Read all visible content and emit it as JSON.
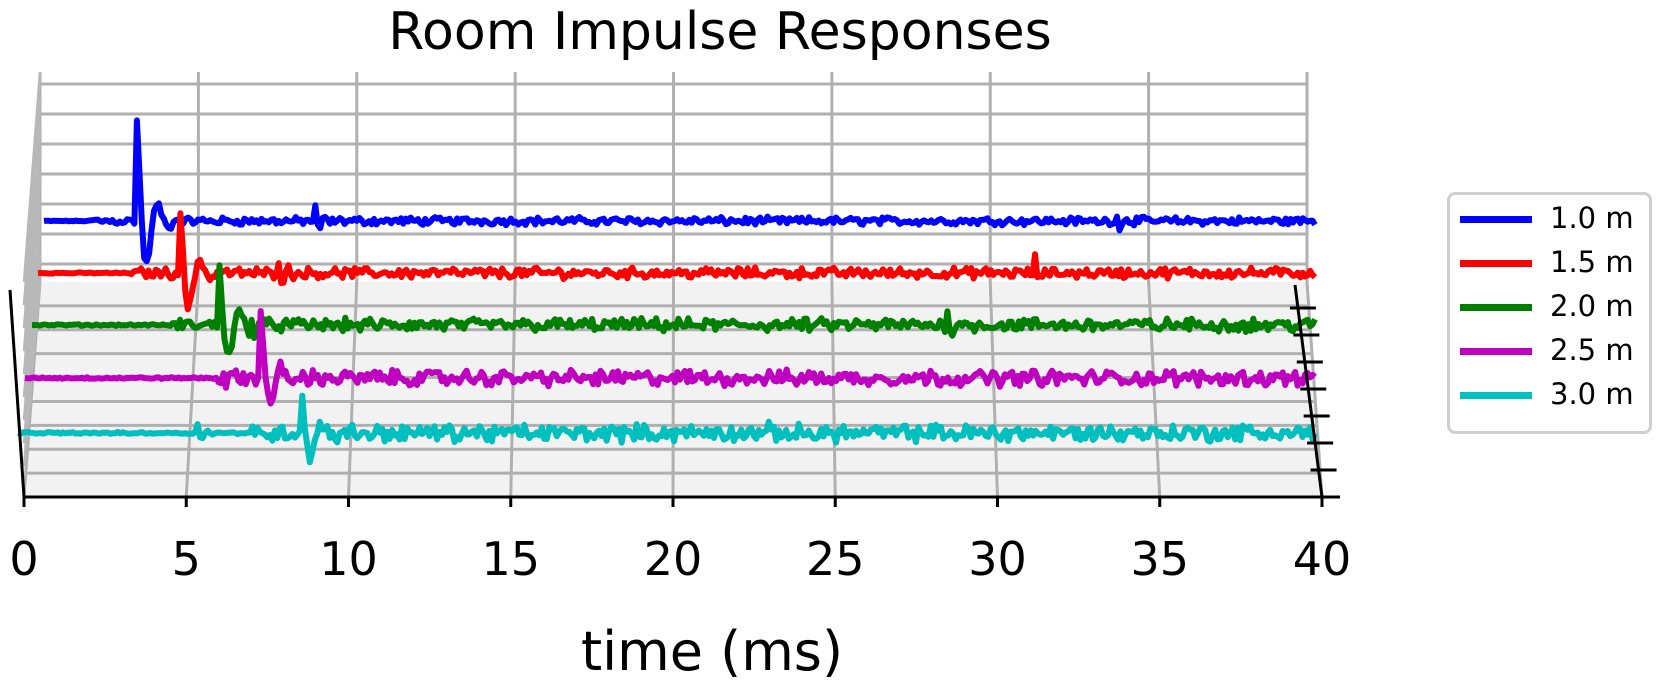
{
  "chart_data": {
    "type": "line",
    "title": "Room Impulse Responses",
    "xlabel": "time (ms)",
    "ylabel": "",
    "xlim": [
      0,
      40
    ],
    "x_ticks": [
      "0",
      "5",
      "10",
      "15",
      "20",
      "25",
      "30",
      "35",
      "40"
    ],
    "grid": true,
    "projection": "3d",
    "legend_position": "right",
    "series": [
      {
        "name": "1.0 m",
        "color": "#0000ff",
        "direct_ms": 2.9,
        "reflections_ms": [
          8.5,
          33.7
        ],
        "peak": 1.0,
        "noise": 0.06
      },
      {
        "name": "1.5 m",
        "color": "#ff0000",
        "direct_ms": 4.4,
        "reflections_ms": [
          7.5,
          31.2
        ],
        "peak": 0.8,
        "noise": 0.08
      },
      {
        "name": "2.0 m",
        "color": "#008000",
        "direct_ms": 5.8,
        "reflections_ms": [
          6.8,
          28.5
        ],
        "peak": 0.7,
        "noise": 0.1
      },
      {
        "name": "2.5 m",
        "color": "#c000c0",
        "direct_ms": 7.3,
        "reflections_ms": [
          6.1,
          25.7
        ],
        "peak": 0.6,
        "noise": 0.12
      },
      {
        "name": "3.0 m",
        "color": "#00bfbf",
        "direct_ms": 8.7,
        "reflections_ms": [
          5.5,
          22.8
        ],
        "peak": 0.55,
        "noise": 0.13
      }
    ]
  }
}
